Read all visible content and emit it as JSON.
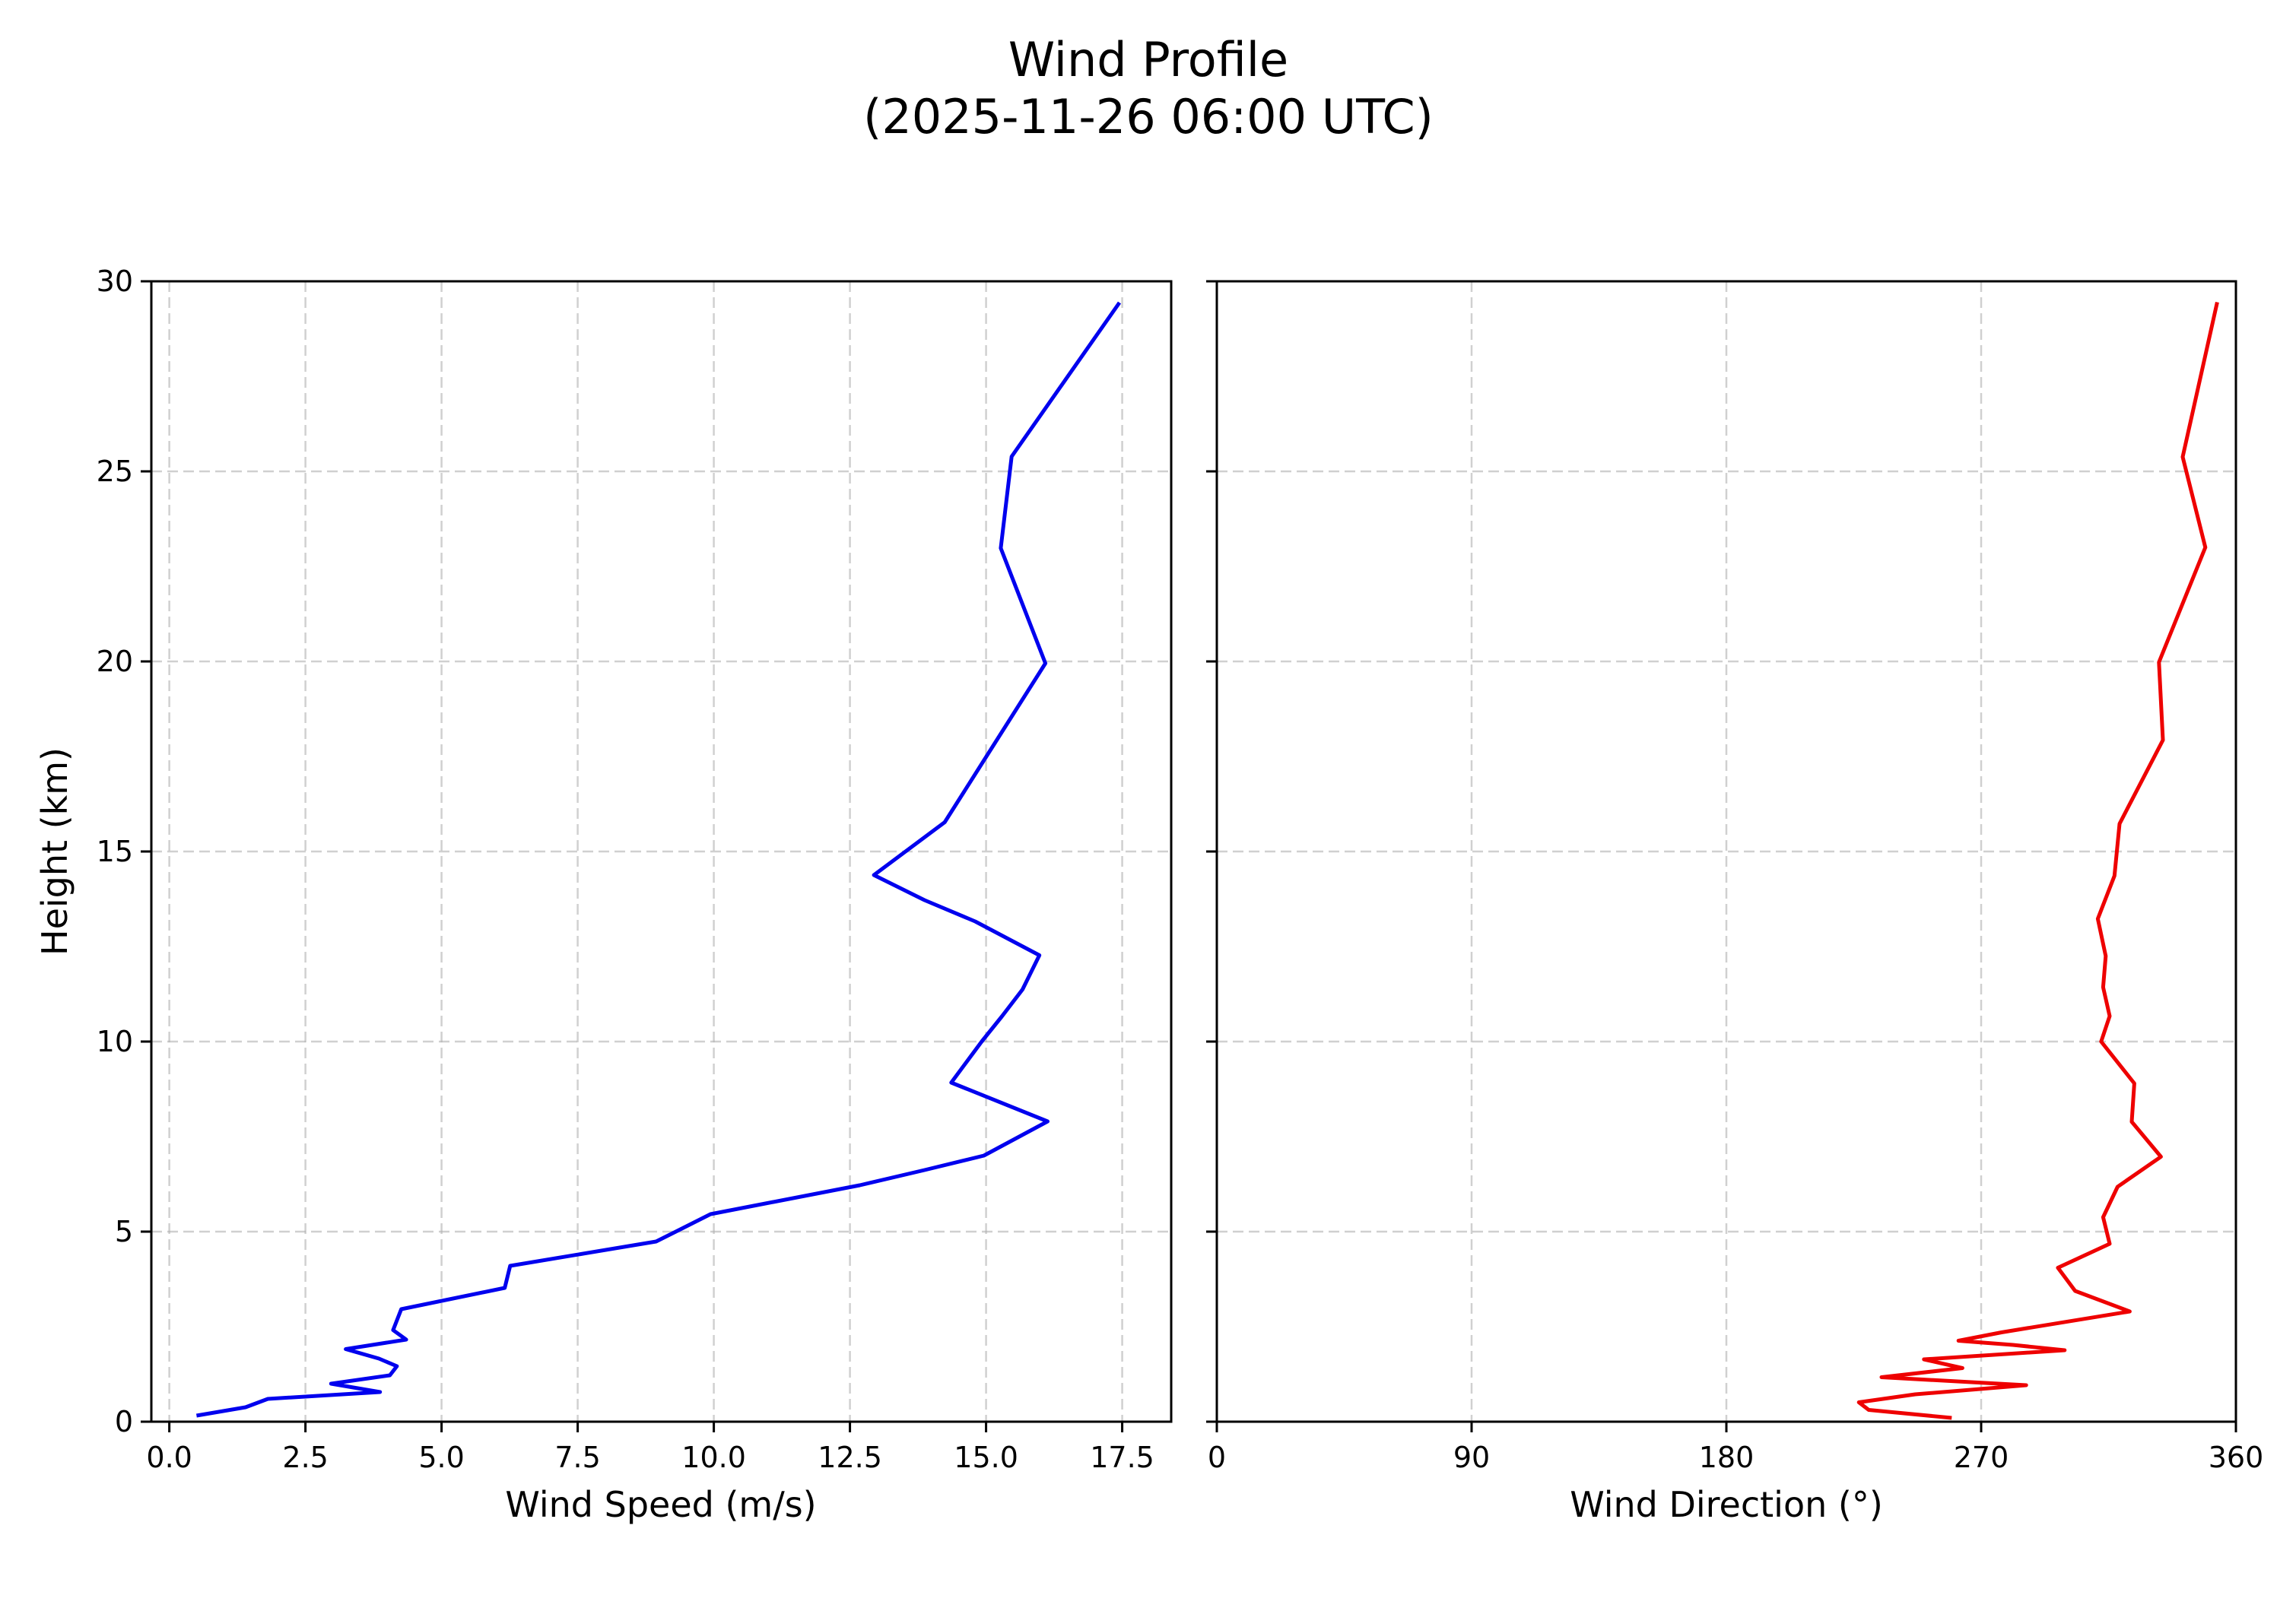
{
  "title": {
    "line1": "Wind Profile",
    "line2": "(2025-11-26 06:00 UTC)"
  },
  "chart_data": [
    {
      "type": "line",
      "title": "Wind Profile (2025-11-26 06:00 UTC)",
      "panel": "left",
      "xlabel": "Wind Speed (m/s)",
      "ylabel": "Height (km)",
      "xlim": [
        -0.33,
        18.4
      ],
      "ylim": [
        0,
        30
      ],
      "xticks": [
        "0.0",
        "2.5",
        "5.0",
        "7.5",
        "10.0",
        "12.5",
        "15.0",
        "17.5"
      ],
      "yticks": [
        "0",
        "5",
        "10",
        "15",
        "20",
        "25",
        "30"
      ],
      "grid": true,
      "series": [
        {
          "name": "Wind Speed",
          "color": "#0000ee",
          "x": [
            0.5,
            1.4,
            1.81,
            3.87,
            2.97,
            4.05,
            4.18,
            3.85,
            3.24,
            4.35,
            4.11,
            4.26,
            6.16,
            6.26,
            8.94,
            9.94,
            12.68,
            13.87,
            14.96,
            16.13,
            14.36,
            14.92,
            15.29,
            15.67,
            15.98,
            14.8,
            13.87,
            12.94,
            14.24,
            16.09,
            15.27,
            15.47,
            17.45
          ],
          "y": [
            0.16,
            0.38,
            0.6,
            0.78,
            1.0,
            1.22,
            1.46,
            1.66,
            1.91,
            2.16,
            2.41,
            2.96,
            3.52,
            4.1,
            4.74,
            5.46,
            6.22,
            6.62,
            7.0,
            7.9,
            8.92,
            10.0,
            10.66,
            11.37,
            12.27,
            13.16,
            13.72,
            14.38,
            15.77,
            19.95,
            22.98,
            25.39,
            29.44
          ]
        }
      ]
    },
    {
      "type": "line",
      "panel": "right",
      "xlabel": "Wind Direction (°)",
      "ylabel": "",
      "xlim": [
        0,
        360
      ],
      "ylim": [
        0,
        30
      ],
      "xticks": [
        "0",
        "90",
        "180",
        "270",
        "360"
      ],
      "yticks_shared": true,
      "grid": true,
      "series": [
        {
          "name": "Wind Direction",
          "color": "#ee0000",
          "x": [
            259.6,
            230.3,
            226.8,
            246.7,
            285.9,
            234.8,
            263.4,
            249.8,
            299.5,
            281.2,
            262.0,
            277.2,
            322.5,
            303.2,
            297.1,
            315.4,
            313.1,
            318.2,
            333.5,
            323.2,
            324.1,
            312.4,
            315.4,
            313.1,
            314.0,
            311.2,
            317.1,
            318.9,
            334.2,
            332.8,
            349.2,
            341.2,
            353.4
          ],
          "y": [
            0.1,
            0.31,
            0.51,
            0.72,
            0.96,
            1.17,
            1.41,
            1.64,
            1.88,
            2.02,
            2.13,
            2.35,
            2.9,
            3.44,
            4.05,
            4.68,
            5.38,
            6.18,
            6.97,
            7.89,
            8.9,
            10.0,
            10.67,
            11.43,
            12.25,
            13.23,
            14.36,
            15.73,
            17.93,
            19.98,
            23.0,
            25.38,
            29.45
          ]
        }
      ]
    }
  ]
}
